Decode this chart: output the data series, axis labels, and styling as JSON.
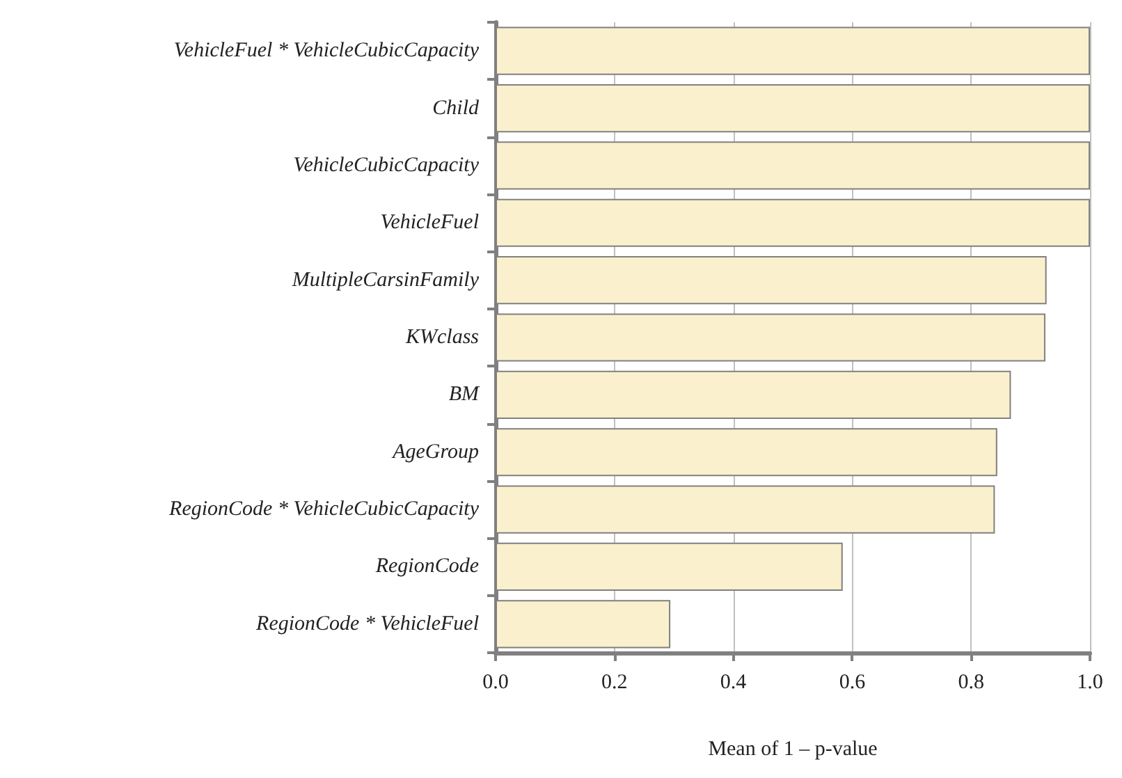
{
  "chart_data": {
    "type": "bar",
    "orientation": "horizontal",
    "xlabel": "Mean of 1 – p-value",
    "categories": [
      "VehicleFuel * VehicleCubicCapacity",
      "Child",
      "VehicleCubicCapacity",
      "VehicleFuel",
      "MultipleCarsinFamily",
      "KWclass",
      "BM",
      "AgeGroup",
      "RegionCode * VehicleCubicCapacity",
      "RegionCode",
      "RegionCode * VehicleFuel"
    ],
    "values": [
      1.0,
      1.0,
      1.0,
      1.0,
      0.927,
      0.925,
      0.867,
      0.844,
      0.84,
      0.584,
      0.294
    ],
    "color": "#fbf0cd",
    "xlim": [
      0,
      1
    ],
    "xticks": [
      {
        "value": 0,
        "label": "0.0"
      },
      {
        "value": 0.2,
        "label": "0.2"
      },
      {
        "value": 0.4,
        "label": "0.4"
      },
      {
        "value": 0.6,
        "label": "0.6"
      },
      {
        "value": 0.8,
        "label": "0.8"
      },
      {
        "value": 1,
        "label": "1.0"
      }
    ],
    "grid": "x"
  }
}
